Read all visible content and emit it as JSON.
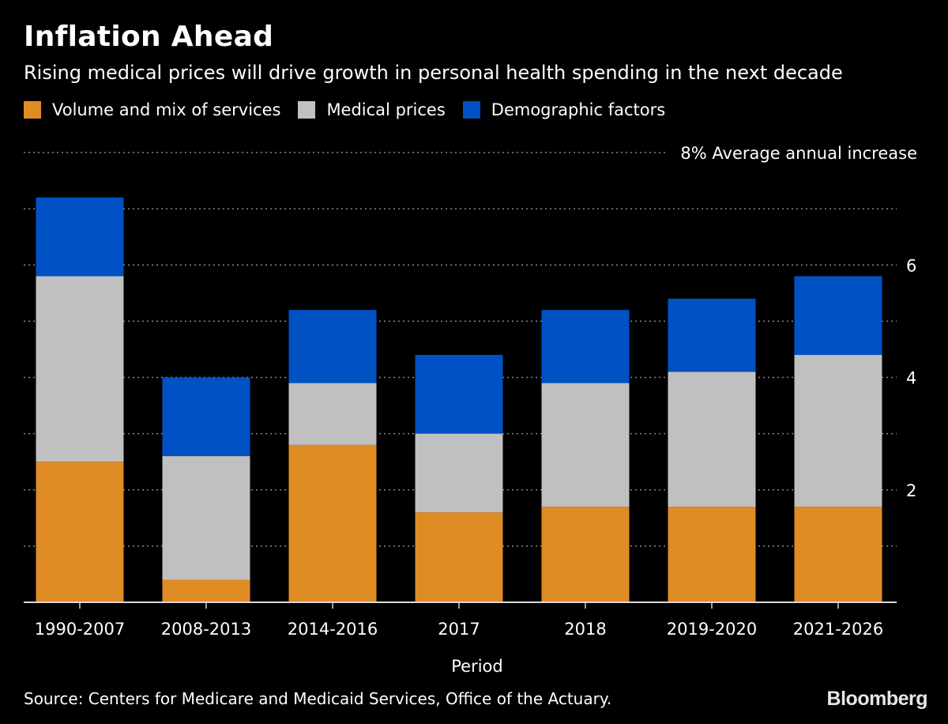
{
  "chart_data": {
    "type": "bar",
    "stacked": true,
    "title": "Inflation Ahead",
    "subtitle": "Rising medical prices will drive growth in personal health spending in the next decade",
    "xlabel": "Period",
    "ylabel": "8% Average annual increase",
    "ylim": [
      0,
      8
    ],
    "yticks": [
      2,
      4,
      6
    ],
    "ytick_labels": [
      "2",
      "4",
      "6"
    ],
    "top_label": "8% Average annual increase",
    "categories": [
      "1990-2007",
      "2008-2013",
      "2014-2016",
      "2017",
      "2018",
      "2019-2020",
      "2021-2026"
    ],
    "series": [
      {
        "name": "Volume and mix of services",
        "color": "#e08c24",
        "values": [
          2.5,
          0.4,
          2.8,
          1.6,
          1.7,
          1.7,
          1.7
        ]
      },
      {
        "name": "Medical prices",
        "color": "#c0c0c0",
        "values": [
          3.3,
          2.2,
          1.1,
          1.4,
          2.2,
          2.4,
          2.7
        ]
      },
      {
        "name": "Demographic factors",
        "color": "#0052c4",
        "values": [
          1.4,
          1.4,
          1.3,
          1.4,
          1.3,
          1.3,
          1.4
        ]
      }
    ],
    "grid": true,
    "legend": "top-left"
  },
  "footer": {
    "source": "Source: Centers for Medicare and Medicaid Services, Office of the Actuary.",
    "brand": "Bloomberg"
  }
}
